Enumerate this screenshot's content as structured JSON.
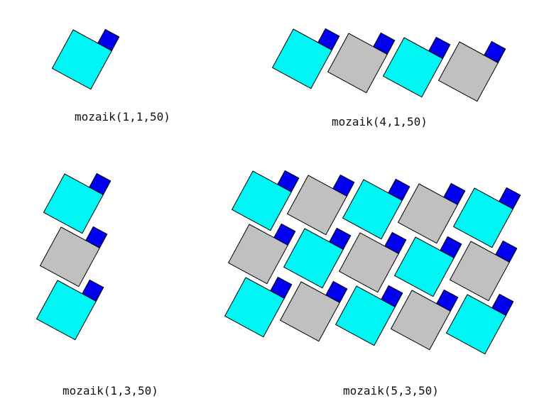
{
  "colors": {
    "small_square": "#0000ee",
    "tile_cyan": "#00f5f5",
    "tile_gray": "#c0c0c0",
    "outline": "#000000",
    "background": "#ffffff"
  },
  "mosaics": [
    {
      "caption": "mozaik(1,1,50)",
      "cols": 1,
      "rows": 1,
      "size": 50
    },
    {
      "caption": "mozaik(4,1,50)",
      "cols": 4,
      "rows": 1,
      "size": 50
    },
    {
      "caption": "mozaik(1,3,50)",
      "cols": 1,
      "rows": 3,
      "size": 50
    },
    {
      "caption": "mozaik(5,3,50)",
      "cols": 5,
      "rows": 3,
      "size": 50
    }
  ]
}
